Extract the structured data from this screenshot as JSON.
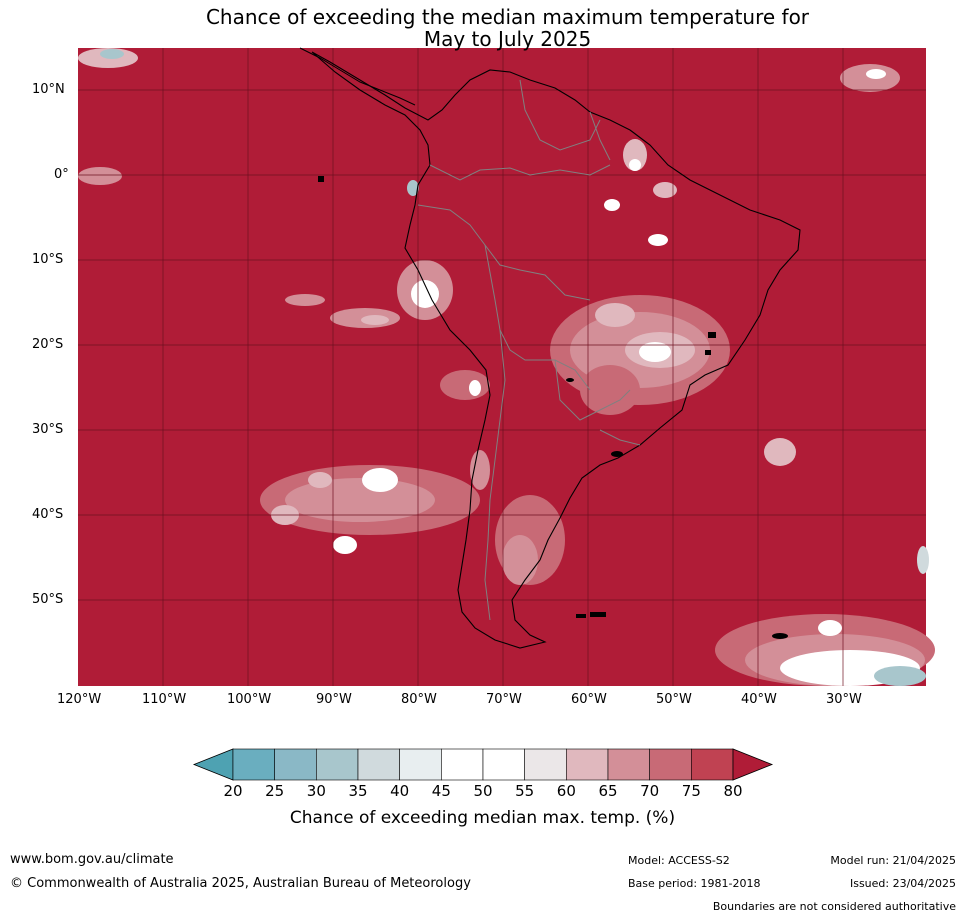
{
  "title_line1": "Chance of exceeding the median maximum temperature for",
  "title_line2": "May to July 2025",
  "lat_labels": [
    "10°N",
    "0°",
    "10°S",
    "20°S",
    "30°S",
    "40°S",
    "50°S"
  ],
  "lon_labels": [
    "120°W",
    "110°W",
    "100°W",
    "90°W",
    "80°W",
    "70°W",
    "60°W",
    "50°W",
    "40°W",
    "30°W"
  ],
  "colorbar": {
    "label": "Chance of exceeding median max. temp. (%)",
    "ticks": [
      "20",
      "25",
      "30",
      "35",
      "40",
      "45",
      "50",
      "55",
      "60",
      "65",
      "70",
      "75",
      "80"
    ],
    "colors": [
      "#6aaebf",
      "#8ab8c6",
      "#a8c6cc",
      "#d0dadd",
      "#e8eef0",
      "#ffffff",
      "#ffffff",
      "#ebe7e8",
      "#e0b8be",
      "#d38f98",
      "#c86a76",
      "#c04252"
    ],
    "low_extend_color": "#4ea2b2",
    "high_extend_color": "#b01c37"
  },
  "colors": {
    "dominant_fill": "#b01c37",
    "grid": "#6e1020",
    "land_border": "#000000",
    "country_border": "#808080"
  },
  "footer": {
    "website": "www.bom.gov.au/climate",
    "copyright": "© Commonwealth of Australia 2025, Australian Bureau of Meteorology",
    "model": "Model: ACCESS-S2",
    "base_period": "Base period: 1981-2018",
    "model_run": "Model run: 21/04/2025",
    "issued": "Issued: 23/04/2025",
    "disclaimer": "Boundaries are not considered authoritative"
  }
}
